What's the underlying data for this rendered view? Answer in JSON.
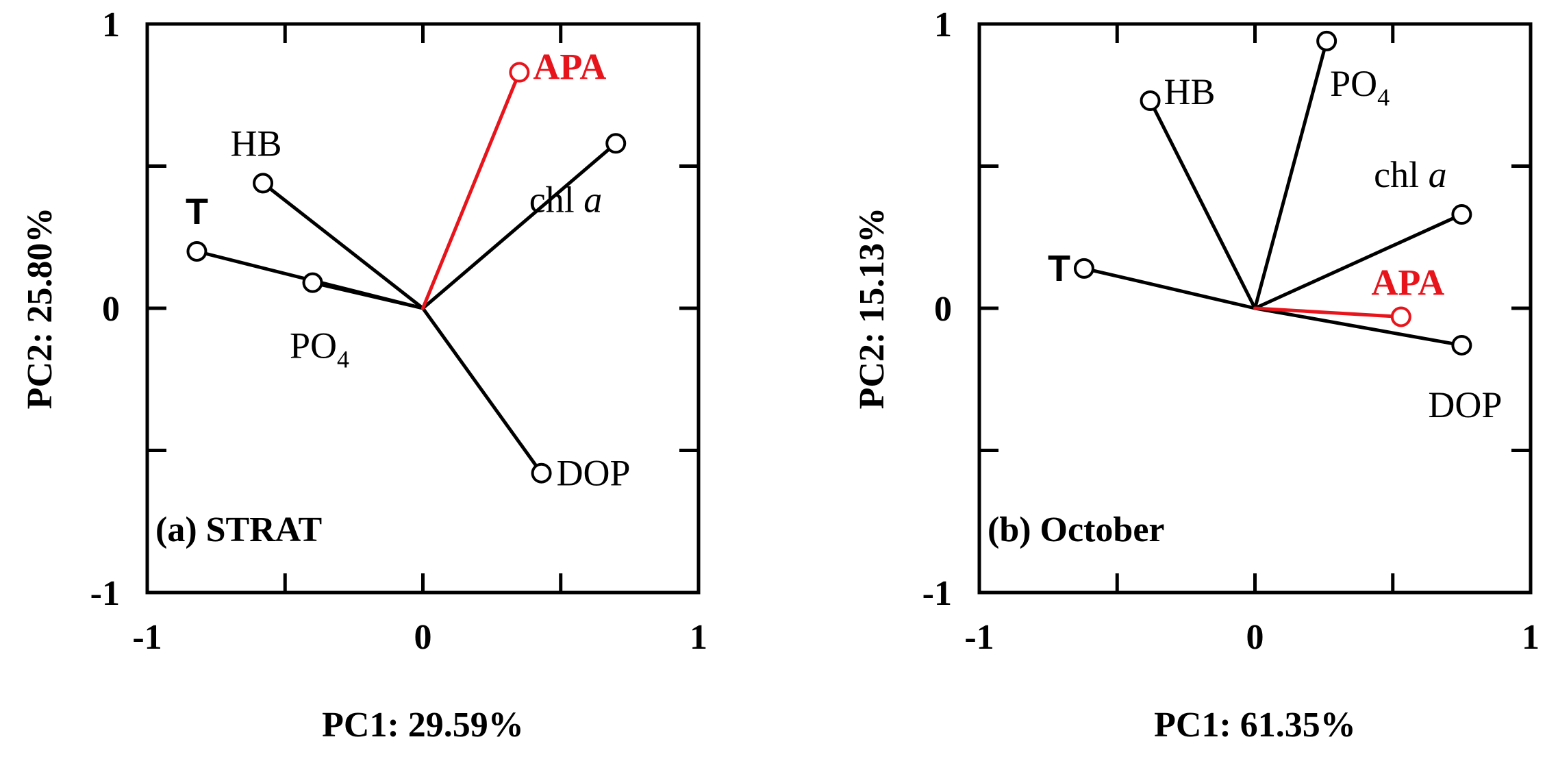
{
  "chart_data": [
    {
      "type": "scatter",
      "subtype": "pca-loading-biplot",
      "panel_label": "(a) STRAT",
      "xlabel": "PC1: 29.59%",
      "ylabel": "PC2: 25.80%",
      "xlim": [
        -1,
        1
      ],
      "ylim": [
        -1,
        1
      ],
      "x_tick_labels": [
        "-1",
        "0",
        "1"
      ],
      "y_tick_labels": [
        "-1",
        "0",
        "1"
      ],
      "grid": false,
      "colors": {
        "default": "#000000",
        "highlight": "#e8141c"
      },
      "points": [
        {
          "label": "APA",
          "x": 0.35,
          "y": 0.83,
          "highlight": true
        },
        {
          "label": "HB",
          "x": -0.58,
          "y": 0.44,
          "highlight": false
        },
        {
          "label": "chl a",
          "x": 0.7,
          "y": 0.58,
          "highlight": false
        },
        {
          "label": "T",
          "x": -0.82,
          "y": 0.2,
          "highlight": false
        },
        {
          "label": "PO4",
          "x": -0.4,
          "y": 0.09,
          "highlight": false
        },
        {
          "label": "DOP",
          "x": 0.43,
          "y": -0.58,
          "highlight": false
        }
      ]
    },
    {
      "type": "scatter",
      "subtype": "pca-loading-biplot",
      "panel_label": "(b) October",
      "xlabel": "PC1: 61.35%",
      "ylabel": "PC2: 15.13%",
      "xlim": [
        -1,
        1
      ],
      "ylim": [
        -1,
        1
      ],
      "x_tick_labels": [
        "-1",
        "0",
        "1"
      ],
      "y_tick_labels": [
        "-1",
        "0",
        "1"
      ],
      "grid": false,
      "colors": {
        "default": "#000000",
        "highlight": "#e8141c"
      },
      "points": [
        {
          "label": "HB",
          "x": -0.38,
          "y": 0.73,
          "highlight": false
        },
        {
          "label": "PO4",
          "x": 0.26,
          "y": 0.94,
          "highlight": false
        },
        {
          "label": "chl a",
          "x": 0.75,
          "y": 0.33,
          "highlight": false
        },
        {
          "label": "T",
          "x": -0.62,
          "y": 0.14,
          "highlight": false
        },
        {
          "label": "APA",
          "x": 0.53,
          "y": -0.03,
          "highlight": true
        },
        {
          "label": "DOP",
          "x": 0.75,
          "y": -0.13,
          "highlight": false
        }
      ]
    }
  ]
}
